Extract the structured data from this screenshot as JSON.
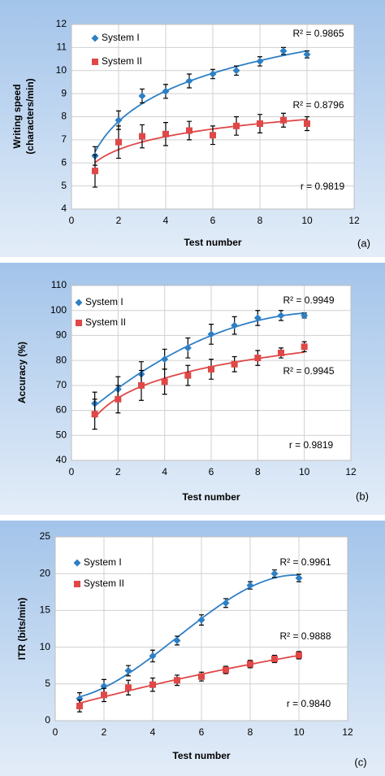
{
  "chart_data": [
    {
      "type": "scatter",
      "panel_label": "(a)",
      "xlabel": "Test number",
      "ylabel": [
        "Writing speed",
        "(characters/min)"
      ],
      "xlim": [
        0,
        12
      ],
      "xticks": [
        0,
        2,
        4,
        6,
        8,
        10,
        12
      ],
      "ylim": [
        4,
        12
      ],
      "yticks": [
        4,
        5,
        6,
        7,
        8,
        9,
        10,
        11,
        12
      ],
      "grid": true,
      "legend": "upper left",
      "series": [
        {
          "name": "System I",
          "color": "#2e7fc4",
          "marker": "diamond",
          "trendline": "logarithmic",
          "x": [
            1,
            2,
            3,
            4,
            5,
            6,
            7,
            8,
            9,
            10
          ],
          "values": [
            6.3,
            7.85,
            8.9,
            9.1,
            9.55,
            9.85,
            10.0,
            10.4,
            10.85,
            10.7
          ],
          "errors": [
            0.4,
            0.4,
            0.3,
            0.3,
            0.3,
            0.2,
            0.2,
            0.2,
            0.15,
            0.15
          ]
        },
        {
          "name": "System II",
          "color": "#e04848",
          "marker": "square",
          "trendline": "logarithmic",
          "x": [
            1,
            2,
            3,
            4,
            5,
            6,
            7,
            8,
            9,
            10
          ],
          "values": [
            5.65,
            6.9,
            7.15,
            7.25,
            7.4,
            7.2,
            7.6,
            7.7,
            7.85,
            7.7
          ],
          "errors": [
            0.7,
            0.7,
            0.5,
            0.5,
            0.4,
            0.4,
            0.4,
            0.4,
            0.3,
            0.3
          ]
        }
      ],
      "annotations": [
        "R² = 0.9865",
        "R² = 0.8796",
        "r = 0.9819"
      ]
    },
    {
      "type": "scatter",
      "panel_label": "(b)",
      "xlabel": "Test number",
      "ylabel": [
        "Accuracy (%)"
      ],
      "xlim": [
        0,
        12
      ],
      "xticks": [
        0,
        2,
        4,
        6,
        8,
        10,
        12
      ],
      "ylim": [
        40,
        110
      ],
      "yticks": [
        40,
        50,
        60,
        70,
        80,
        90,
        100,
        110
      ],
      "grid": true,
      "legend": "upper left",
      "series": [
        {
          "name": "System I",
          "color": "#2e7fc4",
          "marker": "diamond",
          "trendline": "polynomial",
          "trendline_order": 2,
          "x": [
            1,
            2,
            3,
            4,
            5,
            6,
            7,
            8,
            9,
            10
          ],
          "values": [
            62.8,
            68.5,
            74.5,
            80.5,
            85,
            90.5,
            94,
            97,
            98,
            98
          ],
          "errors": [
            4.5,
            5,
            5,
            4,
            4,
            4,
            3.5,
            3,
            2,
            1
          ]
        },
        {
          "name": "System II",
          "color": "#e04848",
          "marker": "square",
          "trendline": "logarithmic",
          "x": [
            1,
            2,
            3,
            4,
            5,
            6,
            7,
            8,
            9,
            10
          ],
          "values": [
            58.5,
            64.5,
            70,
            71.5,
            74,
            76.5,
            78.5,
            81,
            83,
            85.5
          ],
          "errors": [
            6,
            5.5,
            6,
            5,
            4,
            4,
            3,
            3,
            2,
            2
          ]
        }
      ],
      "annotations": [
        "R² = 0.9949",
        "R² = 0.9945",
        "r = 0.9819"
      ]
    },
    {
      "type": "scatter",
      "panel_label": "(c)",
      "xlabel": "Test number",
      "ylabel": [
        "ITR (bits/min)"
      ],
      "xlim": [
        0,
        12
      ],
      "xticks": [
        0,
        2,
        4,
        6,
        8,
        10,
        12
      ],
      "ylim": [
        0,
        25
      ],
      "yticks": [
        0,
        5,
        10,
        15,
        20,
        25
      ],
      "grid": true,
      "legend": "upper left",
      "series": [
        {
          "name": "System I",
          "color": "#2e7fc4",
          "marker": "diamond",
          "trendline": "polynomial",
          "trendline_order": 3,
          "x": [
            1,
            2,
            3,
            4,
            5,
            6,
            7,
            8,
            9,
            10
          ],
          "values": [
            3.0,
            4.7,
            6.8,
            8.8,
            10.9,
            13.7,
            16.0,
            18.4,
            20.0,
            19.4
          ],
          "errors": [
            0.8,
            0.9,
            0.7,
            0.8,
            0.6,
            0.7,
            0.6,
            0.5,
            0.5,
            0.5
          ]
        },
        {
          "name": "System II",
          "color": "#e04848",
          "marker": "square",
          "trendline": "polynomial",
          "trendline_order": 2,
          "x": [
            1,
            2,
            3,
            4,
            5,
            6,
            7,
            8,
            9,
            10
          ],
          "values": [
            2.0,
            3.5,
            4.5,
            4.9,
            5.5,
            6.0,
            6.9,
            7.7,
            8.4,
            8.9
          ],
          "errors": [
            0.8,
            0.9,
            1.0,
            0.9,
            0.7,
            0.6,
            0.5,
            0.5,
            0.5,
            0.5
          ]
        }
      ],
      "annotations": [
        "R² = 0.9961",
        "R² = 0.9888",
        "r = 0.9840"
      ]
    }
  ]
}
